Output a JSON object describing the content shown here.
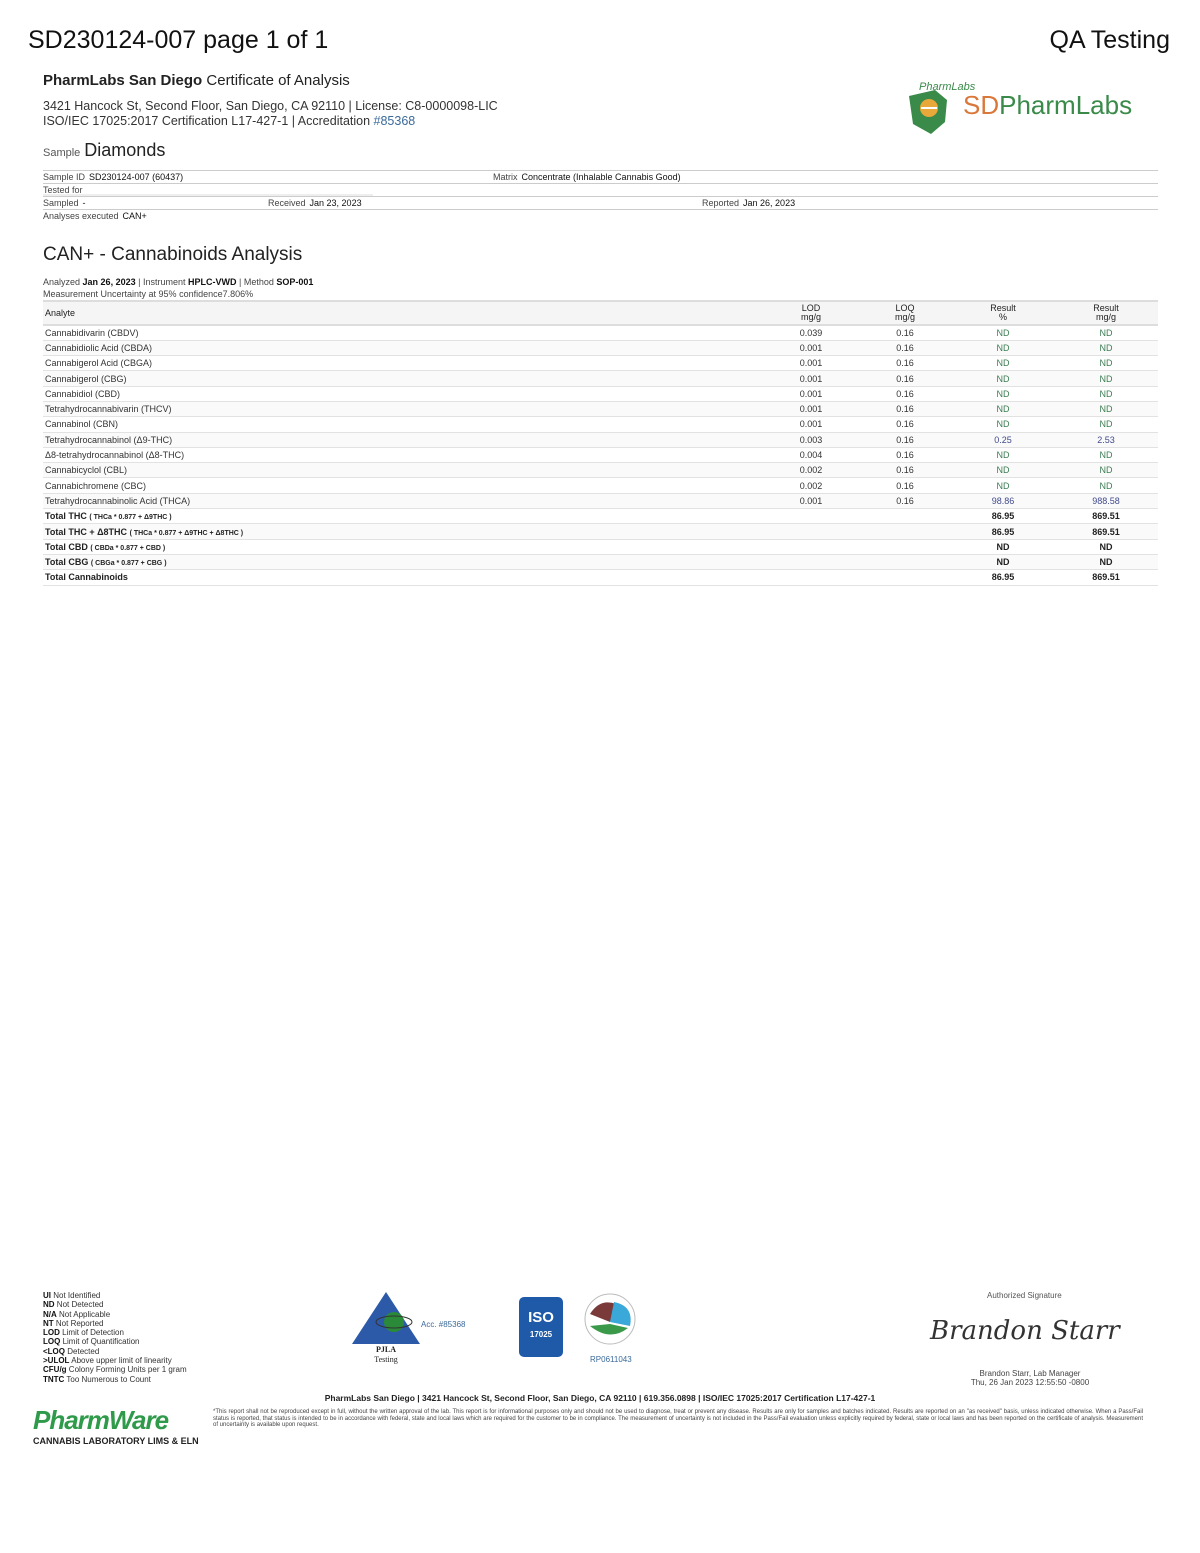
{
  "header": {
    "doc_id": "SD230124-007 page 1 of 1",
    "client": "QA Testing"
  },
  "lab": {
    "name": "PharmLabs San Diego",
    "doc_type": "Certificate of Analysis",
    "address": "3421 Hancock St, Second Floor, San Diego, CA 92110 | License: C8-0000098-LIC",
    "cert": "ISO/IEC 17025:2017 Certification L17-427-1 | Accreditation ",
    "accreditation": "#85368",
    "logo_text": "SDPharmLabs",
    "logo_arc": "PharmLabs"
  },
  "sample": {
    "label": "Sample",
    "name": "Diamonds",
    "id_label": "Sample ID",
    "id": "SD230124-007 (60437)",
    "matrix_label": "Matrix",
    "matrix": "Concentrate (Inhalable Cannabis Good)",
    "tested_for_label": "Tested for",
    "sampled_label": "Sampled",
    "sampled": "-",
    "received_label": "Received",
    "received": "Jan 23, 2023",
    "reported_label": "Reported",
    "reported": "Jan 26, 2023",
    "analyses_label": "Analyses executed",
    "analyses": "CAN+"
  },
  "analysis": {
    "title": "CAN+ - Cannabinoids Analysis",
    "analyzed_label": "Analyzed",
    "analyzed": "Jan 26, 2023",
    "instrument_label": "Instrument",
    "instrument": "HPLC-VWD",
    "method_label": "Method",
    "method": "SOP-001",
    "uncertainty_label": "Measurement Uncertainty at 95% confidence",
    "uncertainty": "7.806%"
  },
  "table": {
    "headers": [
      "Analyte",
      "LOD",
      "mg/g",
      "LOQ",
      "mg/g",
      "Result",
      "%",
      "Result",
      "mg/g"
    ],
    "rows": [
      [
        "Cannabidivarin (CBDV)",
        "0.039",
        "0.16",
        "ND",
        "ND"
      ],
      [
        "Cannabidiolic Acid (CBDA)",
        "0.001",
        "0.16",
        "ND",
        "ND"
      ],
      [
        "Cannabigerol Acid (CBGA)",
        "0.001",
        "0.16",
        "ND",
        "ND"
      ],
      [
        "Cannabigerol (CBG)",
        "0.001",
        "0.16",
        "ND",
        "ND"
      ],
      [
        "Cannabidiol (CBD)",
        "0.001",
        "0.16",
        "ND",
        "ND"
      ],
      [
        "Tetrahydrocannabivarin (THCV)",
        "0.001",
        "0.16",
        "ND",
        "ND"
      ],
      [
        "Cannabinol (CBN)",
        "0.001",
        "0.16",
        "ND",
        "ND"
      ],
      [
        "Tetrahydrocannabinol (Δ9-THC)",
        "0.003",
        "0.16",
        "0.25",
        "2.53"
      ],
      [
        "Δ8-tetrahydrocannabinol (Δ8-THC)",
        "0.004",
        "0.16",
        "ND",
        "ND"
      ],
      [
        "Cannabicyclol (CBL)",
        "0.002",
        "0.16",
        "ND",
        "ND"
      ],
      [
        "Cannabichromene (CBC)",
        "0.002",
        "0.16",
        "ND",
        "ND"
      ],
      [
        "Tetrahydrocannabinolic Acid (THCA)",
        "0.001",
        "0.16",
        "98.86",
        "988.58"
      ]
    ],
    "totals": [
      [
        "Total THC",
        "( THCa * 0.877 + Δ9THC )",
        "86.95",
        "869.51"
      ],
      [
        "Total THC + Δ8THC",
        "( THCa * 0.877 + Δ9THC + Δ8THC )",
        "86.95",
        "869.51"
      ],
      [
        "Total CBD",
        "( CBDa * 0.877 + CBD )",
        "ND",
        "ND"
      ],
      [
        "Total CBG",
        "( CBGa * 0.877 + CBG )",
        "ND",
        "ND"
      ],
      [
        "Total Cannabinoids",
        "",
        "86.95",
        "869.51"
      ]
    ]
  },
  "legend": [
    [
      "UI",
      "Not Identified"
    ],
    [
      "ND",
      "Not Detected"
    ],
    [
      "N/A",
      "Not Applicable"
    ],
    [
      "NT",
      "Not Reported"
    ],
    [
      "LOD",
      "Limit of Detection"
    ],
    [
      "LOQ",
      "Limit of Quantification"
    ],
    [
      "<LOQ",
      "Detected"
    ],
    [
      ">ULOL",
      "Above upper limit of linearity"
    ],
    [
      "CFU/g",
      "Colony Forming Units per 1 gram"
    ],
    [
      "TNTC",
      "Too Numerous to Count"
    ]
  ],
  "badges": {
    "pjla": "PJLA",
    "pjla_sub": "Testing",
    "pjla_acc": "Acc. #85368",
    "iso": "ISO",
    "iso_num": "17025",
    "seal_id": "RP0611043"
  },
  "signature": {
    "label": "Authorized Signature",
    "signature": "Brandon Starr",
    "name": "Brandon Starr, Lab Manager",
    "date": "Thu, 26 Jan 2023 12:55:50 -0800"
  },
  "footer": {
    "line": "PharmLabs San Diego | 3421 Hancock St, Second Floor, San Diego, CA 92110 | 619.356.0898 | ISO/IEC 17025:2017 Certification L17-427-1",
    "disclaimer": "*This report shall not be reproduced except in full, without the written approval of the lab. This report is for informational purposes only and should not be used to diagnose, treat or prevent any disease. Results are only for samples and batches indicated. Results are reported on an \"as received\" basis, unless indicated otherwise. When a Pass/Fail status is reported, that status is intended to be in accordance with federal, state and local laws which are required for the customer to be in compliance. The measurement of uncertainty is not included in the Pass/Fail evaluation unless explicitly required by federal, state or local laws and has been reported on the certificate of analysis. Measurement of uncertainty is available upon request.",
    "pharmware": "PharmWare",
    "pharmware_sub": "CANNABIS LABORATORY LIMS & ELN"
  },
  "colors": {
    "nd": "#3b7d52",
    "value": "#404a8c",
    "logo_green": "#3a8a4a",
    "logo_orange": "#d9783a",
    "iso_blue": "#1e5aa8"
  }
}
